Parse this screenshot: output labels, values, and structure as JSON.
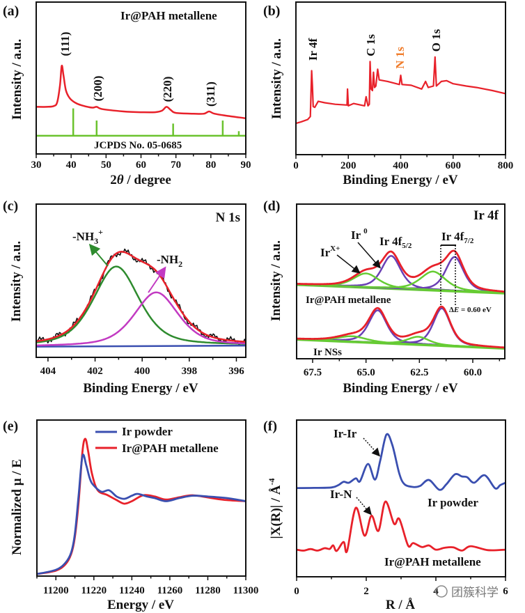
{
  "chart_data": [
    {
      "panel": "(a)",
      "type": "line",
      "title": "Ir@PAH metallene",
      "xlabel": {
        "pre": "2",
        "sym": "θ",
        "post": " / degree"
      },
      "ylabel": "Intensity / a.u.",
      "xlim": [
        30,
        90
      ],
      "ylim": [
        0,
        100
      ],
      "xticks": [
        30,
        40,
        50,
        60,
        70,
        80,
        90
      ],
      "minor_step": 5,
      "grid": false,
      "series": [
        {
          "color": "#e8212a",
          "points": [
            [
              30,
              31
            ],
            [
              33,
              31
            ],
            [
              35,
              31.5
            ],
            [
              36,
              34
            ],
            [
              36.8,
              45
            ],
            [
              37.3,
              58
            ],
            [
              37.8,
              52
            ],
            [
              38.5,
              42
            ],
            [
              39.5,
              37
            ],
            [
              41,
              34
            ],
            [
              43,
              32
            ],
            [
              46,
              30.5
            ],
            [
              47.3,
              31
            ],
            [
              49,
              29.5
            ],
            [
              55,
              28
            ],
            [
              60,
              27.5
            ],
            [
              64,
              27.5
            ],
            [
              66,
              28.5
            ],
            [
              67.3,
              31
            ],
            [
              68.5,
              29
            ],
            [
              70,
              27
            ],
            [
              75,
              26.5
            ],
            [
              78,
              26.5
            ],
            [
              79.5,
              28
            ],
            [
              81,
              26.5
            ],
            [
              85,
              25
            ],
            [
              90,
              23.5
            ]
          ]
        }
      ],
      "reference": {
        "label": "JCPDS No. 05-0685",
        "color": "#6ac22d",
        "baseline": 12,
        "sticks": [
          [
            40.6,
            30
          ],
          [
            47.3,
            22
          ],
          [
            69.2,
            20
          ],
          [
            83.4,
            22
          ],
          [
            88,
            15
          ]
        ]
      },
      "peak_labels": [
        "(111)",
        "(200)",
        "(220)",
        "(311)"
      ]
    },
    {
      "panel": "(b)",
      "type": "line",
      "xlabel": "Binding Energy / eV",
      "ylabel": "Intensity / a.u.",
      "xlim": [
        0,
        800
      ],
      "ylim": [
        0,
        100
      ],
      "xticks": [
        0,
        200,
        400,
        600,
        800
      ],
      "minor_step": 100,
      "series": [
        {
          "color": "#e8212a",
          "points": [
            [
              0,
              20.5
            ],
            [
              20,
              21.5
            ],
            [
              45,
              23
            ],
            [
              55,
              25
            ],
            [
              60,
              55
            ],
            [
              63,
              45
            ],
            [
              66,
              31.5
            ],
            [
              72,
              31
            ],
            [
              85,
              35
            ],
            [
              110,
              34
            ],
            [
              150,
              33
            ],
            [
              195,
              32.5
            ],
            [
              197,
              43
            ],
            [
              200,
              32
            ],
            [
              220,
              33.5
            ],
            [
              262,
              32
            ],
            [
              268,
              38
            ],
            [
              275,
              32
            ],
            [
              280,
              33
            ],
            [
              283,
              61
            ],
            [
              287,
              43
            ],
            [
              292,
              42
            ],
            [
              296,
              54
            ],
            [
              300,
              44
            ],
            [
              305,
              45
            ],
            [
              312,
              56
            ],
            [
              318,
              49
            ],
            [
              350,
              48
            ],
            [
              395,
              46
            ],
            [
              400,
              52
            ],
            [
              405,
              46
            ],
            [
              440,
              45.5
            ],
            [
              480,
              43
            ],
            [
              495,
              48
            ],
            [
              505,
              44
            ],
            [
              525,
              45
            ],
            [
              531,
              64
            ],
            [
              536,
              45
            ],
            [
              555,
              48
            ],
            [
              575,
              48.5
            ],
            [
              600,
              46.5
            ],
            [
              650,
              45
            ],
            [
              690,
              44
            ],
            [
              750,
              42
            ],
            [
              800,
              40
            ]
          ]
        }
      ],
      "peak_labels": [
        {
          "text": "Ir 4f",
          "color": "#111111"
        },
        {
          "text": "C 1s",
          "color": "#111111"
        },
        {
          "text": "N 1s",
          "color": "#f07c2a"
        },
        {
          "text": "O 1s",
          "color": "#111111"
        }
      ]
    },
    {
      "panel": "(c)",
      "type": "line",
      "title": "N 1s",
      "xlabel": "Binding Energy / eV",
      "ylabel": "Intensity / a.u.",
      "xlim": [
        404.5,
        395.6
      ],
      "ylim": [
        0,
        100
      ],
      "xticks": [
        404,
        402,
        400,
        398,
        396
      ],
      "minor_step": 1,
      "baseline": [
        [
          404.5,
          7
        ],
        [
          395.6,
          7.7
        ]
      ],
      "components": [
        {
          "label": {
            "main": "-NH",
            "sub": "3",
            "sup": "+"
          },
          "color": "#2e8b2e",
          "center": 401.1,
          "height": 52,
          "fwhm": 2.3
        },
        {
          "label": {
            "main": "-NH",
            "sub": "2"
          },
          "color": "#c23ac2",
          "center": 399.4,
          "height": 35,
          "fwhm": 2.2
        }
      ],
      "colors": {
        "raw": "#111111",
        "fit": "#e8212a",
        "background": "#3a4fb0"
      }
    },
    {
      "panel": "(d)",
      "type": "line",
      "title": "Ir 4f",
      "xlabel": "Binding Energy / eV",
      "ylabel": "Intensity / a.u.",
      "xlim": [
        68.25,
        58.5
      ],
      "ylim": [
        0,
        100
      ],
      "xticks": [
        67.5,
        65.0,
        62.5,
        60.0
      ],
      "xtick_labels": [
        "67.5",
        "65.0",
        "62.5",
        "60.0"
      ],
      "minor_step": 1.25,
      "colors": {
        "raw": "#111111",
        "fit": "#e8212a",
        "metal": "#6a3fb5",
        "oxide": "#66cc33"
      },
      "spectra": [
        {
          "label": "Ir@PAH metallene",
          "baseline": [
            [
              68.25,
              48
            ],
            [
              58.5,
              42.5
            ]
          ],
          "components": [
            {
              "kind": "metal",
              "center": 60.85,
              "height": 22,
              "fwhm": 1.0
            },
            {
              "kind": "metal",
              "center": 63.82,
              "height": 21,
              "fwhm": 1.05
            },
            {
              "kind": "oxide",
              "center": 61.86,
              "height": 12,
              "fwhm": 1.4
            },
            {
              "kind": "oxide",
              "center": 65.0,
              "height": 9,
              "fwhm": 1.4
            }
          ]
        },
        {
          "label": "Ir NSs",
          "baseline": [
            [
              68.25,
              12.6
            ],
            [
              58.5,
              6.8
            ]
          ],
          "components": [
            {
              "kind": "metal",
              "center": 61.45,
              "height": 24,
              "fwhm": 0.95
            },
            {
              "kind": "metal",
              "center": 64.45,
              "height": 21,
              "fwhm": 1.0
            },
            {
              "kind": "oxide",
              "center": 62.55,
              "height": 5,
              "fwhm": 1.2
            },
            {
              "kind": "oxide",
              "center": 65.65,
              "height": 3.5,
              "fwhm": 1.6
            }
          ]
        }
      ],
      "annotations": {
        "irx": {
          "main": "Ir",
          "sup": "X+"
        },
        "ir0": {
          "main": "Ir ",
          "sup": "0"
        },
        "f52": {
          "main": "Ir 4f",
          "sub": "5/2"
        },
        "f72": {
          "main": "Ir 4f",
          "sub": "7/2"
        },
        "delta": {
          "pre": "Δ",
          "sym": "E",
          "post": " = 0.60 eV"
        }
      }
    },
    {
      "panel": "(e)",
      "type": "line",
      "xlabel": "Energy / eV",
      "ylabel": "Normalized μ / E",
      "xlim": [
        11190,
        11300
      ],
      "ylim": [
        0,
        100
      ],
      "xticks": [
        11200,
        11220,
        11240,
        11260,
        11280,
        11300
      ],
      "minor_step": 10,
      "legend": "top-right",
      "series": [
        {
          "name": "Ir powder",
          "color": "#3a4fb0",
          "points": [
            [
              11190,
              1.3
            ],
            [
              11200,
              4
            ],
            [
              11205,
              8.5
            ],
            [
              11208,
              15
            ],
            [
              11210,
              27
            ],
            [
              11212,
              52
            ],
            [
              11214,
              77
            ],
            [
              11216,
              71
            ],
            [
              11218,
              62
            ],
            [
              11220,
              58
            ],
            [
              11224,
              54
            ],
            [
              11228,
              55
            ],
            [
              11232,
              51
            ],
            [
              11236,
              49.5
            ],
            [
              11240,
              51.5
            ],
            [
              11243,
              52.7
            ],
            [
              11248,
              51
            ],
            [
              11252,
              50
            ],
            [
              11258,
              48
            ],
            [
              11265,
              50
            ],
            [
              11272,
              51.5
            ],
            [
              11280,
              51
            ],
            [
              11290,
              50
            ],
            [
              11300,
              48
            ]
          ]
        },
        {
          "name": "Ir@PAH metallene",
          "color": "#e8212a",
          "points": [
            [
              11190,
              1.3
            ],
            [
              11200,
              3.5
            ],
            [
              11205,
              7.5
            ],
            [
              11208,
              14
            ],
            [
              11210,
              25
            ],
            [
              11212,
              48
            ],
            [
              11214,
              80
            ],
            [
              11215.5,
              88
            ],
            [
              11217,
              80
            ],
            [
              11219,
              65.6
            ],
            [
              11222,
              55
            ],
            [
              11227,
              52
            ],
            [
              11232,
              48.7
            ],
            [
              11236,
              46.4
            ],
            [
              11240,
              48
            ],
            [
              11246,
              51.8
            ],
            [
              11252,
              51
            ],
            [
              11258,
              49
            ],
            [
              11265,
              50.5
            ],
            [
              11272,
              51.8
            ],
            [
              11282,
              50
            ],
            [
              11290,
              48.7
            ],
            [
              11300,
              48
            ]
          ]
        }
      ]
    },
    {
      "panel": "(f)",
      "type": "line",
      "xlabel": "R / Å",
      "ylabel": {
        "main": "|X(R)| / Å",
        "sup": "-4"
      },
      "xlim": [
        0,
        6
      ],
      "ylim": [
        0,
        100
      ],
      "xticks": [
        0,
        2,
        4,
        6
      ],
      "minor_step": 1,
      "series": [
        {
          "name": "Ir powder",
          "color": "#3a4fb0",
          "points": [
            [
              0,
              56.6
            ],
            [
              0.5,
              56.7
            ],
            [
              1.0,
              57
            ],
            [
              1.2,
              58.5
            ],
            [
              1.35,
              60.6
            ],
            [
              1.5,
              60
            ],
            [
              1.7,
              62.8
            ],
            [
              1.82,
              61
            ],
            [
              2.05,
              72
            ],
            [
              2.25,
              62
            ],
            [
              2.4,
              74
            ],
            [
              2.58,
              90.7
            ],
            [
              2.75,
              84
            ],
            [
              2.95,
              65.8
            ],
            [
              3.1,
              59
            ],
            [
              3.35,
              57.3
            ],
            [
              3.55,
              58
            ],
            [
              3.8,
              61.8
            ],
            [
              4.1,
              55.5
            ],
            [
              4.3,
              59
            ],
            [
              4.55,
              65.4
            ],
            [
              4.75,
              64
            ],
            [
              4.9,
              63.5
            ],
            [
              5.1,
              60
            ],
            [
              5.4,
              64.8
            ],
            [
              5.7,
              56.5
            ],
            [
              5.85,
              58.5
            ],
            [
              6.0,
              60
            ]
          ]
        },
        {
          "name": "Ir@PAH metallene",
          "color": "#e8212a",
          "points": [
            [
              0,
              17.3
            ],
            [
              0.2,
              16.7
            ],
            [
              0.4,
              17.7
            ],
            [
              0.6,
              16.7
            ],
            [
              0.8,
              18.2
            ],
            [
              0.95,
              17.8
            ],
            [
              1.05,
              20
            ],
            [
              1.15,
              16.5
            ],
            [
              1.35,
              22.2
            ],
            [
              1.45,
              16.5
            ],
            [
              1.7,
              44
            ],
            [
              1.95,
              26.2
            ],
            [
              2.15,
              39
            ],
            [
              2.35,
              29.3
            ],
            [
              2.55,
              48
            ],
            [
              2.8,
              33.8
            ],
            [
              2.95,
              36.9
            ],
            [
              3.2,
              20
            ],
            [
              3.35,
              21.5
            ],
            [
              3.6,
              19
            ],
            [
              3.8,
              20
            ],
            [
              4.0,
              17.3
            ],
            [
              4.25,
              18.5
            ],
            [
              4.5,
              18.8
            ],
            [
              4.75,
              16.7
            ],
            [
              5.0,
              19.5
            ],
            [
              5.5,
              17
            ],
            [
              6.0,
              17.3
            ]
          ]
        }
      ],
      "annotations": {
        "irir": "Ir-Ir",
        "irn": "Ir-N"
      }
    }
  ],
  "watermark": "团簇科学"
}
